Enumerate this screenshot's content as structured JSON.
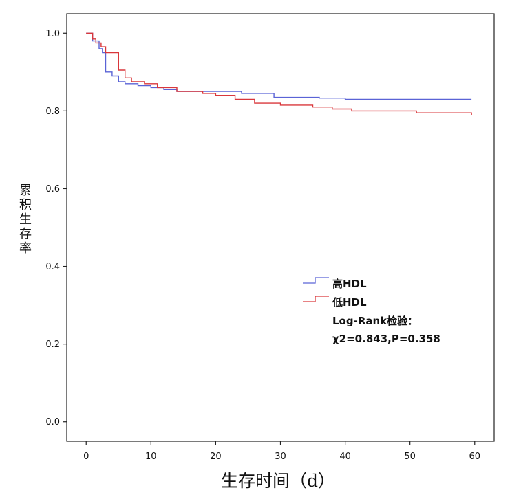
{
  "chart_data": {
    "type": "line",
    "title": "",
    "xlabel": "生存时间（d）",
    "ylabel": "累积生存率",
    "xlim": [
      -3,
      63
    ],
    "ylim": [
      -0.05,
      1.05
    ],
    "x_ticks": [
      0,
      10,
      20,
      30,
      40,
      50,
      60
    ],
    "y_ticks": [
      0.0,
      0.2,
      0.4,
      0.6,
      0.8,
      1.0
    ],
    "y_tick_labels": [
      "0.0",
      "0.2",
      "0.4",
      "0.6",
      "0.8",
      "1.0"
    ],
    "grid": false,
    "legend_position": "center-right",
    "series": [
      {
        "name": "高HDL",
        "color": "#5a63d6",
        "step": true,
        "x": [
          0,
          1,
          2,
          2.5,
          3,
          4,
          5,
          6,
          8,
          10,
          12,
          14,
          24,
          29,
          36,
          40,
          59.5
        ],
        "y": [
          1.0,
          0.98,
          0.96,
          0.95,
          0.9,
          0.89,
          0.875,
          0.87,
          0.865,
          0.86,
          0.855,
          0.85,
          0.845,
          0.835,
          0.833,
          0.83,
          0.83
        ]
      },
      {
        "name": "低HDL",
        "color": "#d9373b",
        "step": true,
        "x": [
          0,
          1,
          1.5,
          2.3,
          3,
          5,
          6,
          7,
          9,
          11,
          14,
          18,
          20,
          23,
          26,
          30,
          35,
          38,
          41,
          51,
          59.5
        ],
        "y": [
          1.0,
          0.985,
          0.975,
          0.965,
          0.95,
          0.905,
          0.885,
          0.875,
          0.87,
          0.86,
          0.85,
          0.845,
          0.84,
          0.83,
          0.82,
          0.815,
          0.81,
          0.805,
          0.8,
          0.795,
          0.79
        ]
      }
    ],
    "annotation": {
      "line1": "Log-Rank检验：",
      "line2": "χ2=0.843,P=0.358"
    }
  }
}
